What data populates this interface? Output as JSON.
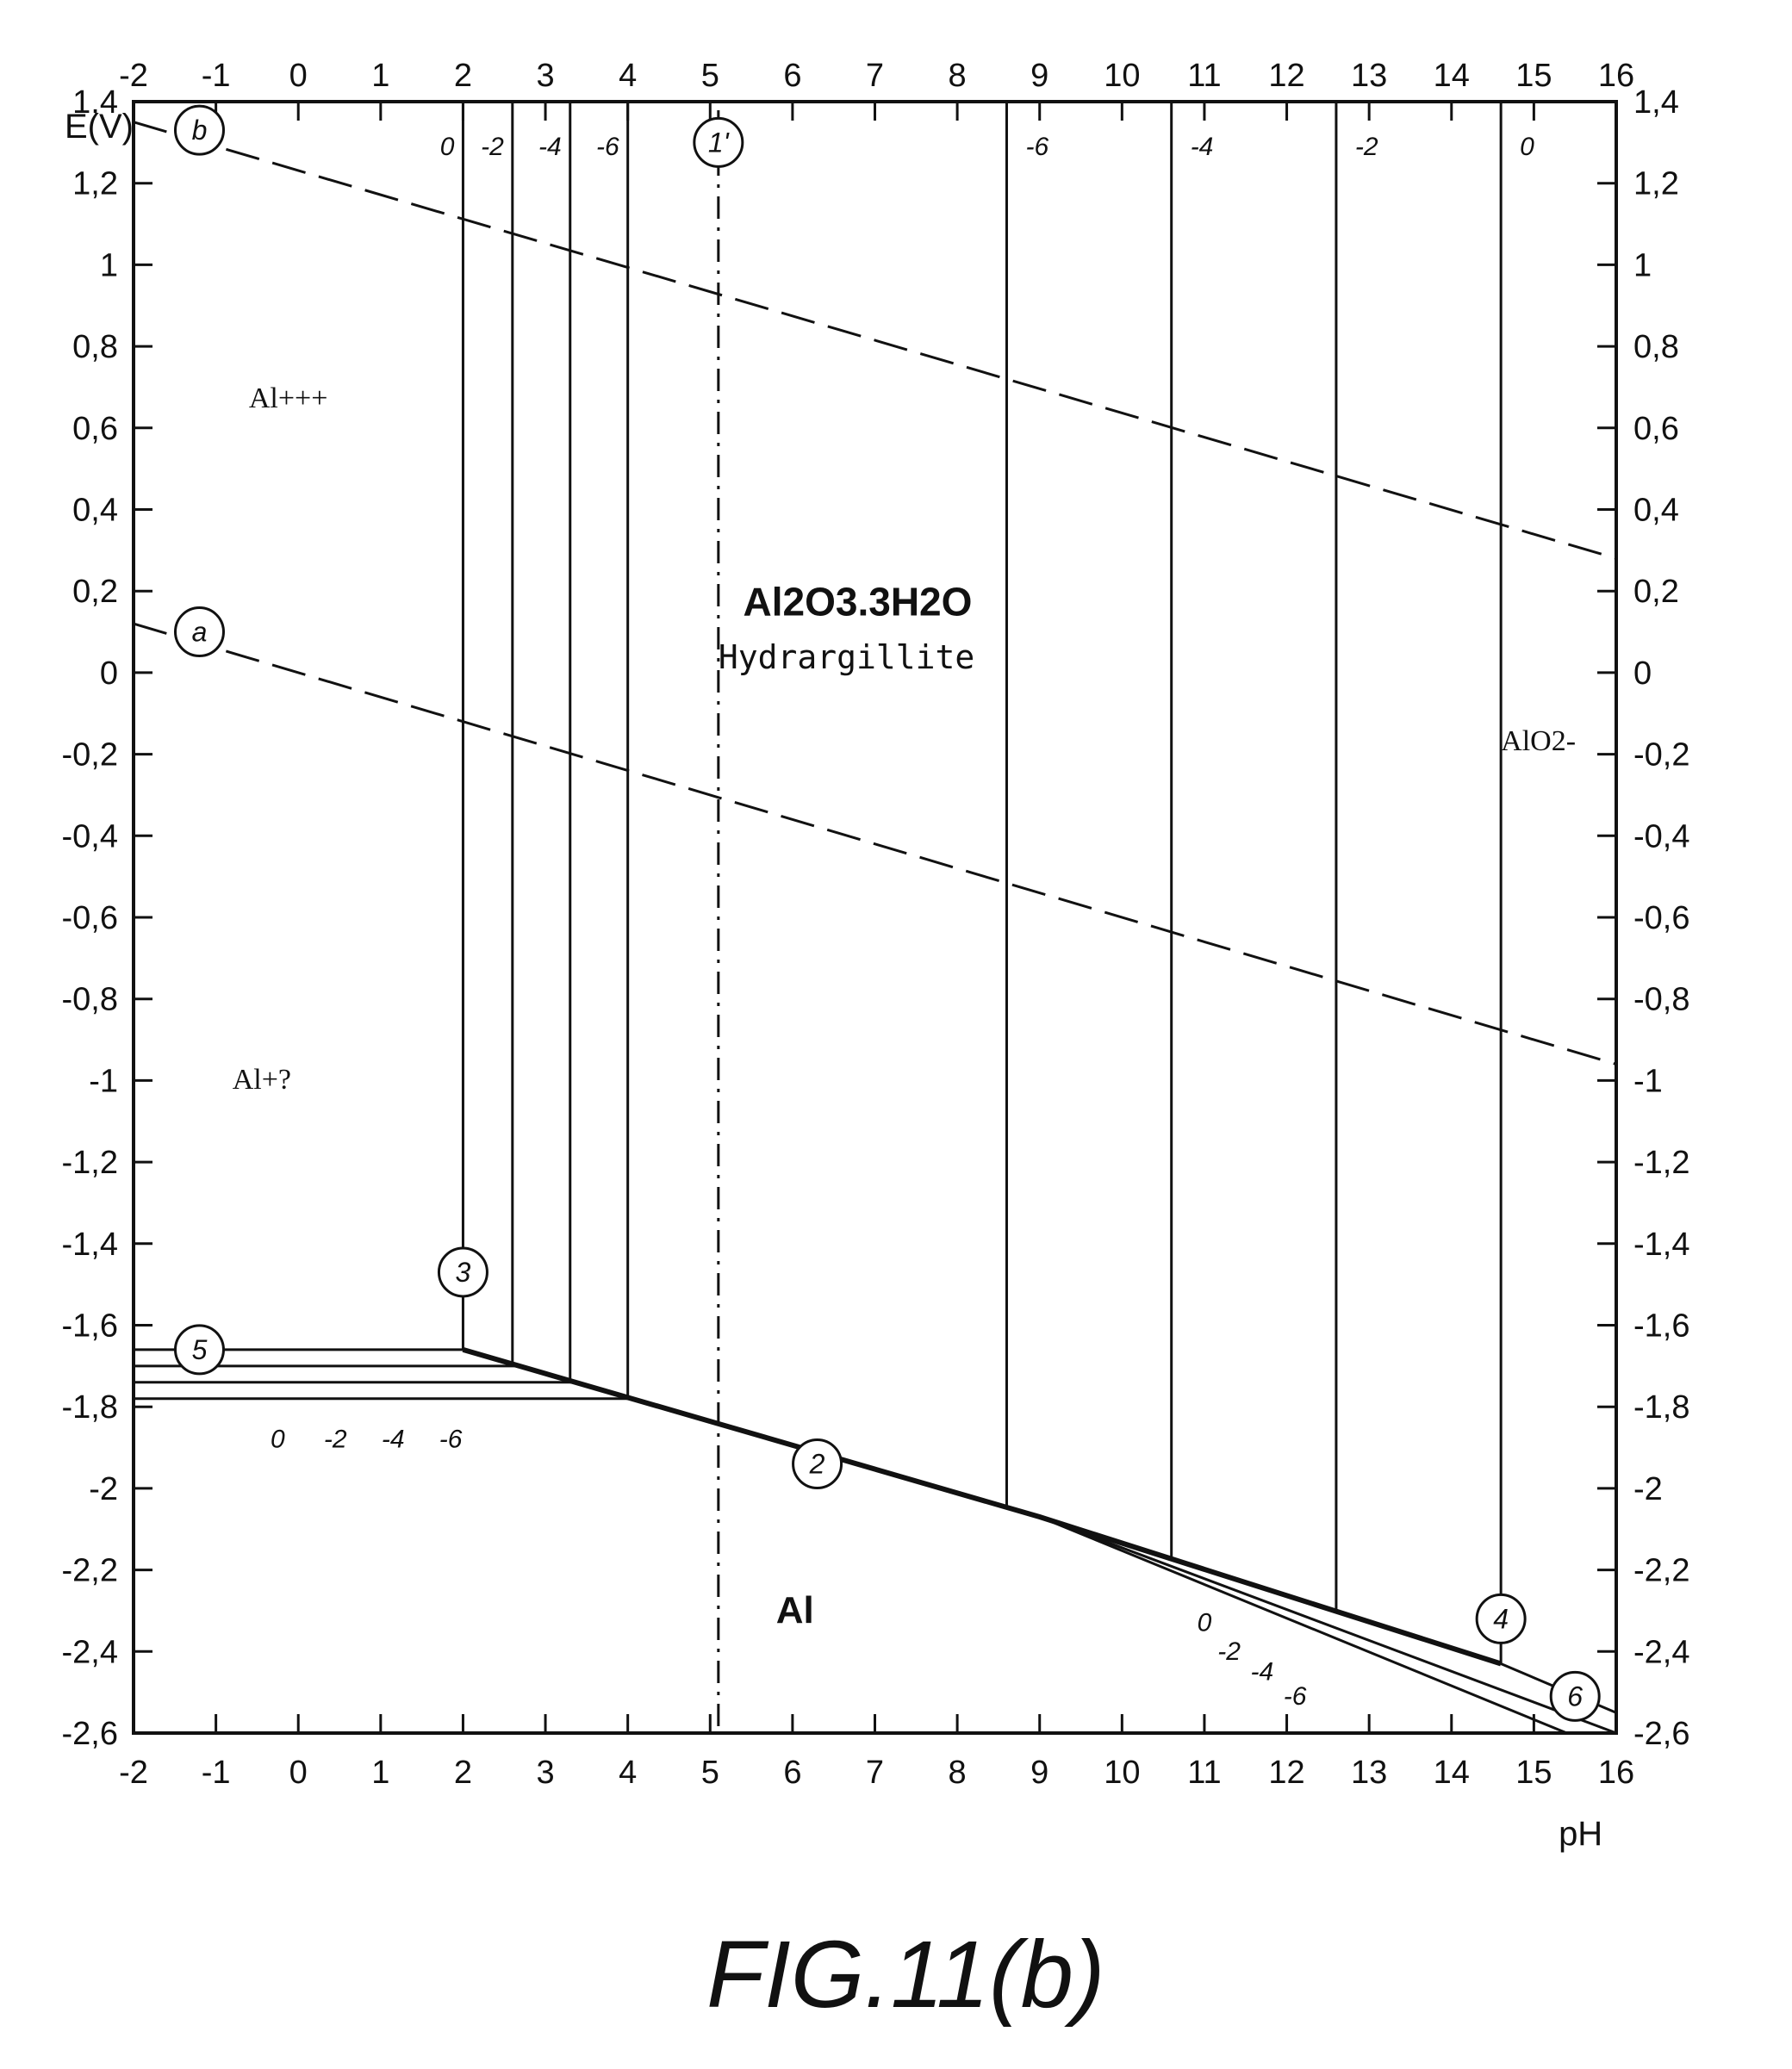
{
  "chart_data": {
    "type": "line",
    "x_label": "pH",
    "y_label": "E(V)",
    "xlim": [
      -2,
      16
    ],
    "ylim": [
      -2.6,
      1.4
    ],
    "x_ticks": [
      -2,
      -1,
      0,
      1,
      2,
      3,
      4,
      5,
      6,
      7,
      8,
      9,
      10,
      11,
      12,
      13,
      14,
      15,
      16
    ],
    "y_ticks": [
      -2.6,
      -2.4,
      -2.2,
      -2,
      -1.8,
      -1.6,
      -1.4,
      -1.2,
      -1,
      -0.8,
      -0.6,
      -0.4,
      -0.2,
      0,
      0.2,
      0.4,
      0.6,
      0.8,
      1,
      1.2,
      1.4
    ],
    "y_tick_labels": [
      "-2,6",
      "-2,4",
      "-2,2",
      "-2",
      "-1,8",
      "-1,6",
      "-1,4",
      "-1,2",
      "-1",
      "-0,8",
      "-0,6",
      "-0,4",
      "-0,2",
      "0",
      "0,2",
      "0,4",
      "0,6",
      "0,8",
      "1",
      "1,2",
      "1,4"
    ],
    "water_lines": [
      {
        "label": "b",
        "points": [
          [
            -2,
            1.35
          ],
          [
            16,
            0.28
          ]
        ]
      },
      {
        "label": "a",
        "points": [
          [
            -2,
            0.12
          ],
          [
            16,
            -0.96
          ]
        ]
      }
    ],
    "acid_boundaries": [
      {
        "conc": "0",
        "x": 2.0
      },
      {
        "conc": "-2",
        "x": 2.6
      },
      {
        "conc": "-4",
        "x": 3.3
      },
      {
        "conc": "-6",
        "x": 4.0
      }
    ],
    "alkaline_boundaries": [
      {
        "conc": "-6",
        "x": 8.6
      },
      {
        "conc": "-4",
        "x": 10.6
      },
      {
        "conc": "-2",
        "x": 12.6
      },
      {
        "conc": "0",
        "x": 14.6
      }
    ],
    "reduction_lines_acid": [
      {
        "conc": "0",
        "y": -1.66
      },
      {
        "conc": "-2",
        "y": -1.7
      },
      {
        "conc": "-4",
        "y": -1.74
      },
      {
        "conc": "-6",
        "y": -1.78
      }
    ],
    "line_2": [
      [
        2.0,
        -1.66
      ],
      [
        9.0,
        -2.07
      ],
      [
        14.6,
        -2.43
      ]
    ],
    "reduction_lines_alkaline": [
      {
        "conc": "0",
        "points": [
          [
            9.0,
            -2.07
          ],
          [
            16,
            -2.6
          ]
        ]
      },
      {
        "conc": "-2",
        "points": [
          [
            9.0,
            -2.07
          ],
          [
            15.4,
            -2.6
          ]
        ]
      }
    ],
    "line_1prime_x": 5.1,
    "boundary_markers": [
      "1'",
      "2",
      "3",
      "4",
      "5",
      "6",
      "a",
      "b"
    ],
    "regions": {
      "al3": "Al+++",
      "al1": "Al+?",
      "oxide_formula": "Al2O3.3H2O",
      "oxide_name": "Hydrargillite",
      "aluminate": "AlO2-",
      "metal": "Al"
    },
    "acid_conc_labels": [
      "0",
      "-2",
      "-4",
      "-6"
    ],
    "alkaline_conc_labels": [
      "-6",
      "-4",
      "-2",
      "0"
    ],
    "lower_left_conc_labels": [
      "0",
      "-2",
      "-4",
      "-6"
    ],
    "lower_right_conc_labels": [
      "0",
      "-2",
      "-4",
      "-6"
    ]
  },
  "caption": "FIG.11(b)"
}
